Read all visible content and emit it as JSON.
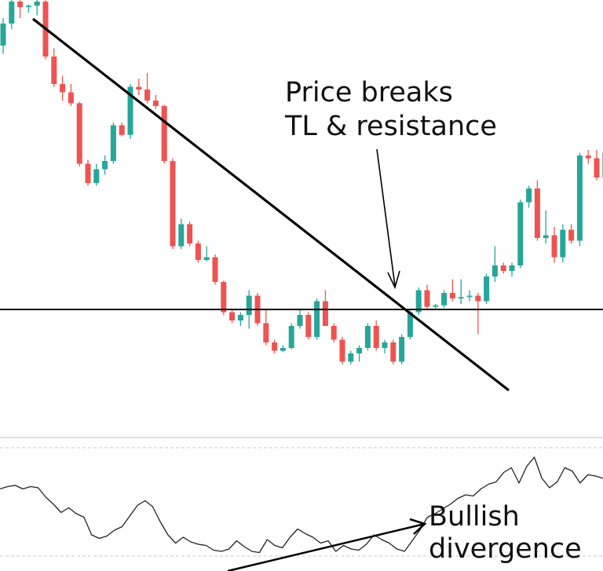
{
  "chart_data": [
    {
      "type": "candlestick",
      "colors": {
        "up": "#26a69a",
        "down": "#ef5350",
        "annotation": "#000000"
      },
      "candles": [
        {
          "o": 96,
          "h": 106,
          "l": 93,
          "c": 104
        },
        {
          "o": 104,
          "h": 113,
          "l": 102,
          "c": 112
        },
        {
          "o": 112,
          "h": 114,
          "l": 106,
          "c": 110
        },
        {
          "o": 110,
          "h": 111,
          "l": 108,
          "c": 110.5
        },
        {
          "o": 110.5,
          "h": 116,
          "l": 107,
          "c": 112
        },
        {
          "o": 112,
          "h": 112.5,
          "l": 91,
          "c": 92
        },
        {
          "o": 92,
          "h": 95,
          "l": 81,
          "c": 82
        },
        {
          "o": 82,
          "h": 85,
          "l": 76,
          "c": 79
        },
        {
          "o": 79,
          "h": 82,
          "l": 74,
          "c": 75
        },
        {
          "o": 75,
          "h": 75.5,
          "l": 52,
          "c": 53
        },
        {
          "o": 53,
          "h": 54.5,
          "l": 45,
          "c": 46
        },
        {
          "o": 46,
          "h": 53,
          "l": 45,
          "c": 51
        },
        {
          "o": 51,
          "h": 56,
          "l": 49,
          "c": 54
        },
        {
          "o": 54,
          "h": 68,
          "l": 53,
          "c": 67
        },
        {
          "o": 67,
          "h": 68,
          "l": 63,
          "c": 63.5
        },
        {
          "o": 63.5,
          "h": 82,
          "l": 62,
          "c": 81
        },
        {
          "o": 81,
          "h": 84,
          "l": 78,
          "c": 80
        },
        {
          "o": 80,
          "h": 86,
          "l": 75,
          "c": 76
        },
        {
          "o": 76,
          "h": 78,
          "l": 73,
          "c": 74
        },
        {
          "o": 74,
          "h": 74.5,
          "l": 53,
          "c": 54
        },
        {
          "o": 54,
          "h": 55,
          "l": 22,
          "c": 23
        },
        {
          "o": 23,
          "h": 33,
          "l": 22,
          "c": 31
        },
        {
          "o": 31,
          "h": 32,
          "l": 23,
          "c": 24
        },
        {
          "o": 24,
          "h": 25,
          "l": 17,
          "c": 18
        },
        {
          "o": 18,
          "h": 23,
          "l": 17.5,
          "c": 19
        },
        {
          "o": 19,
          "h": 20,
          "l": 9,
          "c": 10
        },
        {
          "o": 10,
          "h": 10.5,
          "l": -2,
          "c": -1
        },
        {
          "o": -1,
          "h": 0,
          "l": -5,
          "c": -4
        },
        {
          "o": -4,
          "h": -1,
          "l": -6,
          "c": -2
        },
        {
          "o": -2,
          "h": 7,
          "l": -7,
          "c": 5
        },
        {
          "o": 5,
          "h": 6,
          "l": -6,
          "c": -5
        },
        {
          "o": -5,
          "h": 0,
          "l": -13,
          "c": -12
        },
        {
          "o": -12,
          "h": -11,
          "l": -16,
          "c": -15
        },
        {
          "o": -15,
          "h": -13,
          "l": -15.5,
          "c": -14
        },
        {
          "o": -14,
          "h": -5,
          "l": -14.5,
          "c": -6
        },
        {
          "o": -6,
          "h": 0,
          "l": -7,
          "c": -2
        },
        {
          "o": -2,
          "h": -1,
          "l": -11,
          "c": -10
        },
        {
          "o": -10,
          "h": 4,
          "l": -11,
          "c": 3
        },
        {
          "o": 3,
          "h": 7,
          "l": -5,
          "c": -6
        },
        {
          "o": -6,
          "h": -5,
          "l": -12,
          "c": -11
        },
        {
          "o": -11,
          "h": -10,
          "l": -20,
          "c": -19
        },
        {
          "o": -19,
          "h": -15,
          "l": -20,
          "c": -16
        },
        {
          "o": -16,
          "h": -13,
          "l": -19,
          "c": -14
        },
        {
          "o": -14,
          "h": -5,
          "l": -15,
          "c": -6
        },
        {
          "o": -6,
          "h": -4,
          "l": -15,
          "c": -14
        },
        {
          "o": -14,
          "h": -11,
          "l": -16,
          "c": -12
        },
        {
          "o": -12,
          "h": -11,
          "l": -20,
          "c": -19
        },
        {
          "o": -19,
          "h": -9,
          "l": -20,
          "c": -10
        },
        {
          "o": -10,
          "h": 0,
          "l": -11,
          "c": -1
        },
        {
          "o": -1,
          "h": 8,
          "l": -2,
          "c": 7
        },
        {
          "o": 7,
          "h": 9,
          "l": 0,
          "c": 1
        },
        {
          "o": 1,
          "h": 2,
          "l": 0,
          "c": 1.5
        },
        {
          "o": 1.5,
          "h": 7,
          "l": 0.5,
          "c": 6
        },
        {
          "o": 6,
          "h": 11,
          "l": 3,
          "c": 4
        },
        {
          "o": 4,
          "h": 11,
          "l": 2,
          "c": 4.5
        },
        {
          "o": 4.5,
          "h": 7,
          "l": 3,
          "c": 5
        },
        {
          "o": 5,
          "h": 6,
          "l": -9,
          "c": 3
        },
        {
          "o": 3,
          "h": 13,
          "l": 2,
          "c": 12
        },
        {
          "o": 12,
          "h": 23,
          "l": 10,
          "c": 16
        },
        {
          "o": 16,
          "h": 17,
          "l": 13,
          "c": 14
        },
        {
          "o": 14,
          "h": 17,
          "l": 12,
          "c": 16
        },
        {
          "o": 16,
          "h": 40,
          "l": 15,
          "c": 39
        },
        {
          "o": 39,
          "h": 45,
          "l": 37,
          "c": 44
        },
        {
          "o": 44,
          "h": 47,
          "l": 25,
          "c": 26
        },
        {
          "o": 26,
          "h": 36,
          "l": 24,
          "c": 27
        },
        {
          "o": 27,
          "h": 30,
          "l": 17,
          "c": 19
        },
        {
          "o": 19,
          "h": 31,
          "l": 17,
          "c": 29
        },
        {
          "o": 29,
          "h": 31,
          "l": 24,
          "c": 25
        },
        {
          "o": 25,
          "h": 57,
          "l": 23,
          "c": 56
        },
        {
          "o": 56,
          "h": 58,
          "l": 53,
          "c": 55
        },
        {
          "o": 55,
          "h": 58,
          "l": 47,
          "c": 48
        },
        {
          "o": 48,
          "h": 58,
          "l": 45,
          "c": 57
        },
        {
          "o": 57,
          "h": 60,
          "l": 54,
          "c": 55
        },
        {
          "o": 55,
          "h": 57,
          "l": 44,
          "c": 45
        },
        {
          "o": 45,
          "h": 51,
          "l": 42,
          "c": 50
        },
        {
          "o": 50,
          "h": 53,
          "l": 45,
          "c": 46
        }
      ]
    },
    {
      "type": "line",
      "series": [
        {
          "values": [
            55,
            57,
            58,
            55,
            57,
            56,
            48,
            42,
            35,
            39,
            34,
            31,
            16,
            13,
            15,
            20,
            23,
            32,
            41,
            45,
            40,
            27,
            16,
            9,
            14,
            10,
            8,
            7,
            3,
            2,
            4,
            11,
            6,
            2,
            1,
            12,
            7,
            5,
            14,
            21,
            17,
            14,
            9,
            11,
            2,
            7,
            4,
            3,
            8,
            16,
            12,
            9,
            4,
            2,
            11,
            20,
            31,
            34,
            38,
            42,
            47,
            50,
            49,
            55,
            59,
            61,
            69,
            73,
            60,
            74,
            82,
            64,
            56,
            61,
            73,
            70,
            60,
            67,
            66,
            64
          ]
        }
      ]
    }
  ],
  "annotations": {
    "breakout_line1": "Price breaks",
    "breakout_line2": "TL & resistance",
    "divergence_line1": "Bullish",
    "divergence_line2": "divergence"
  }
}
